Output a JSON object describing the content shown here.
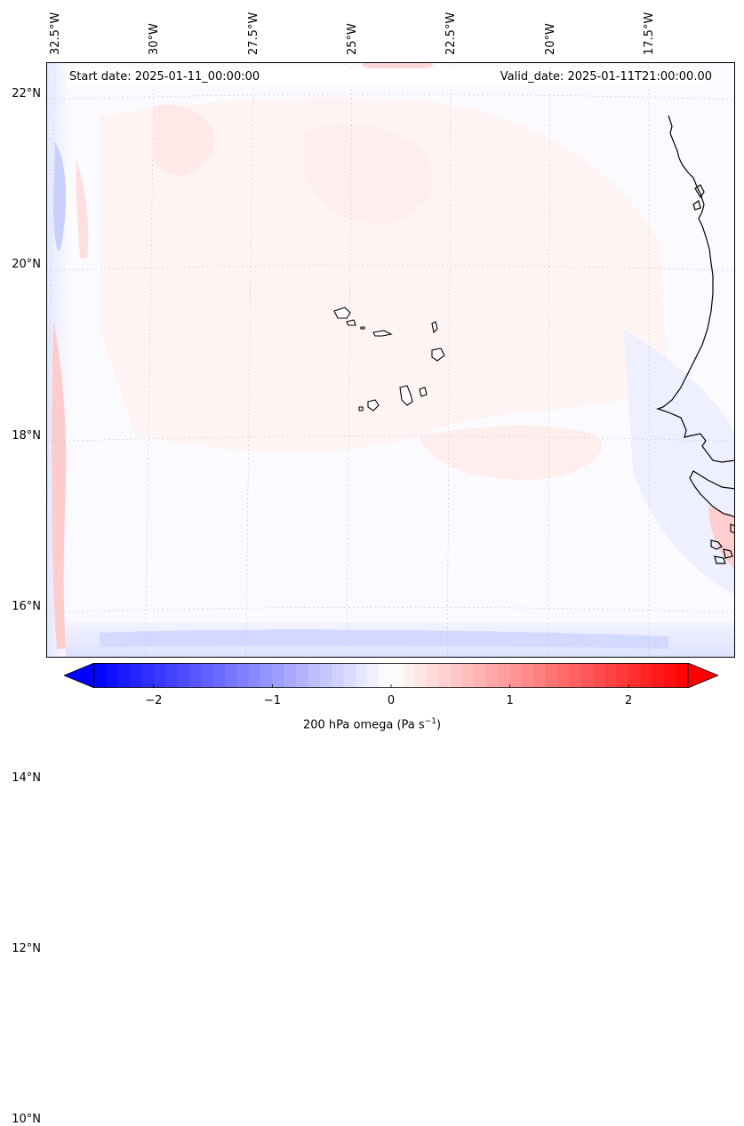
{
  "start_date": "Start date: 2025-01-11_00:00:00",
  "valid_date": "Valid_date: 2025-01-11T21:00:00.00",
  "longitudes": [
    {
      "label": "32.5°W",
      "value": -32.5
    },
    {
      "label": "30°W",
      "value": -30
    },
    {
      "label": "27.5°W",
      "value": -27.5
    },
    {
      "label": "25°W",
      "value": -25
    },
    {
      "label": "22.5°W",
      "value": -22.5
    },
    {
      "label": "20°W",
      "value": -20
    },
    {
      "label": "17.5°W",
      "value": -17.5
    }
  ],
  "latitudes": [
    {
      "label": "22°N",
      "value": 22
    },
    {
      "label": "20°N",
      "value": 20
    },
    {
      "label": "18°N",
      "value": 18
    },
    {
      "label": "16°N",
      "value": 16
    },
    {
      "label": "14°N",
      "value": 14
    },
    {
      "label": "12°N",
      "value": 12
    },
    {
      "label": "10°N",
      "value": 10
    }
  ],
  "colorbar": {
    "min": -2.5,
    "max": 2.5,
    "ticks": [
      {
        "label": "−2",
        "value": -2
      },
      {
        "label": "−1",
        "value": -1
      },
      {
        "label": "0",
        "value": 0
      },
      {
        "label": "1",
        "value": 1
      },
      {
        "label": "2",
        "value": 2
      }
    ],
    "label_main": "200 hPa omega (Pa s",
    "label_exp": "−1",
    "label_end": ")",
    "color_neg": "#0000ff",
    "color_zero": "#ffffff",
    "color_pos": "#ff0000"
  },
  "colors": {
    "coastline": "#000000",
    "gridline": "#c8c8c8"
  }
}
